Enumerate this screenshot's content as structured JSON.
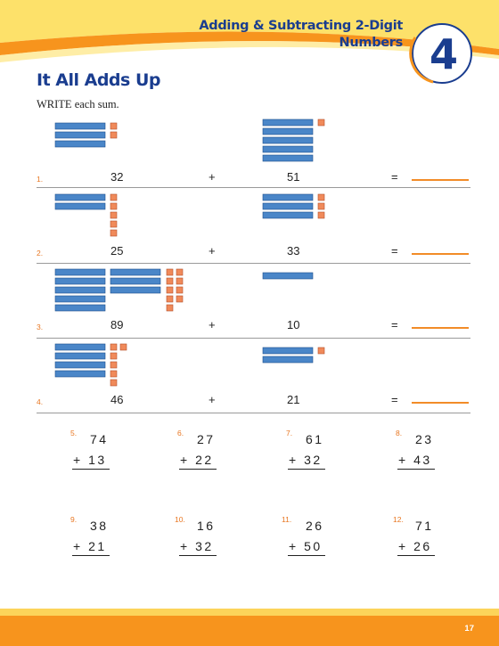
{
  "header": {
    "chapter_title_line1": "Adding & Subtracting 2-Digit",
    "chapter_title_line2": "Numbers",
    "chapter_number": "4"
  },
  "page_title": "It All Adds Up",
  "instructions": "WRITE each sum.",
  "picture_problems": [
    {
      "label": "1.",
      "a": "32",
      "b": "51",
      "plus": "+",
      "equals": "="
    },
    {
      "label": "2.",
      "a": "25",
      "b": "33",
      "plus": "+",
      "equals": "="
    },
    {
      "label": "3.",
      "a": "89",
      "b": "10",
      "plus": "+",
      "equals": "="
    },
    {
      "label": "4.",
      "a": "46",
      "b": "21",
      "plus": "+",
      "equals": "="
    }
  ],
  "vertical_problems": [
    {
      "label": "5.",
      "top": "74",
      "bottom": "+ 13"
    },
    {
      "label": "6.",
      "top": "27",
      "bottom": "+ 22"
    },
    {
      "label": "7.",
      "top": "61",
      "bottom": "+ 32"
    },
    {
      "label": "8.",
      "top": "23",
      "bottom": "+ 43"
    },
    {
      "label": "9.",
      "top": "38",
      "bottom": "+ 21"
    },
    {
      "label": "10.",
      "top": "16",
      "bottom": "+ 32"
    },
    {
      "label": "11.",
      "top": "26",
      "bottom": "+ 50"
    },
    {
      "label": "12.",
      "top": "71",
      "bottom": "+ 26"
    }
  ],
  "footer": {
    "page_number": "17"
  },
  "colors": {
    "blue": "#1a3d8f",
    "orange": "#f7941d",
    "yellow": "#fcd45a",
    "ten_rod": "#4a86c8",
    "one_cube": "#f08a5a"
  }
}
